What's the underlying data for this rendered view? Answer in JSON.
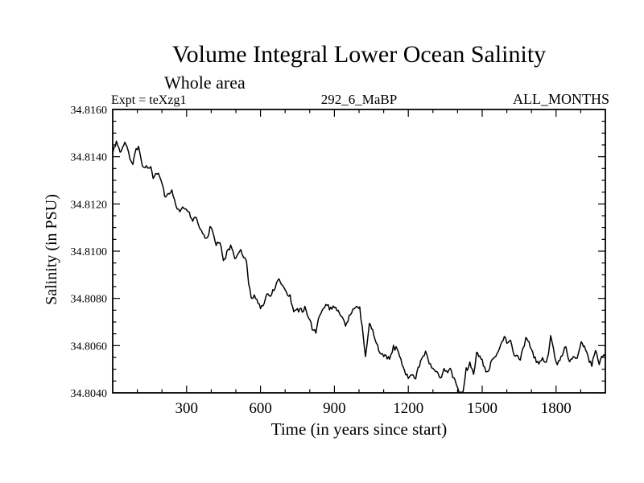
{
  "header": {
    "title": "Volume Integral Lower Ocean Salinity",
    "subtitle": "Whole area",
    "expt_label": "Expt = teXzg1",
    "run_label": "292_6_MaBP",
    "months_label": "ALL_MONTHS"
  },
  "chart_data": {
    "type": "line",
    "title": "Volume Integral Lower Ocean Salinity",
    "subtitle": "Whole area",
    "annotations": [
      "Expt = teXzg1",
      "292_6_MaBP",
      "ALL_MONTHS"
    ],
    "xlabel": "Time (in years since start)",
    "ylabel": "Salinity (in PSU)",
    "xlim": [
      0,
      2000
    ],
    "ylim": [
      34.804,
      34.816
    ],
    "grid": false,
    "legend": "none",
    "line_color": "#000000",
    "background_color": "#ffffff",
    "xticks_major": [
      300,
      600,
      900,
      1200,
      1500,
      1800
    ],
    "xtick_labels": [
      "300",
      "600",
      "900",
      "1200",
      "1500",
      "1800"
    ],
    "xtick_minor_interval": 100,
    "ytick_labels": [
      "34.8040",
      "34.8060",
      "34.8080",
      "34.8100",
      "34.8120",
      "34.8140",
      "34.8160"
    ],
    "yticks_major": [
      34.804,
      34.806,
      34.808,
      34.81,
      34.812,
      34.814,
      34.816
    ],
    "ytick_minor_interval": 0.0005,
    "noise_amplitude_medium": 0.00028,
    "noise_amplitude_fine": 0.0001,
    "series": [
      {
        "name": "lower ocean salinity",
        "x": [
          0,
          15,
          30,
          45,
          58,
          70,
          82,
          95,
          110,
          126,
          142,
          155,
          164,
          175,
          191,
          202,
          215,
          225,
          235,
          251,
          262,
          273,
          284,
          297,
          311,
          325,
          340,
          352,
          365,
          380,
          395,
          404,
          415,
          430,
          445,
          458,
          470,
          483,
          495,
          508,
          520,
          532,
          543,
          552,
          562,
          575,
          590,
          605,
          620,
          640,
          660,
          680,
          695,
          710,
          725,
          740,
          755,
          770,
          785,
          800,
          815,
          825,
          840,
          860,
          880,
          900,
          915,
          930,
          945,
          960,
          975,
          990,
          1003,
          1013,
          1026,
          1042,
          1060,
          1080,
          1100,
          1124,
          1140,
          1160,
          1180,
          1205,
          1230,
          1255,
          1270,
          1290,
          1310,
          1330,
          1350,
          1370,
          1385,
          1400,
          1412,
          1422,
          1435,
          1450,
          1465,
          1477,
          1495,
          1515,
          1530,
          1550,
          1570,
          1590,
          1605,
          1620,
          1640,
          1655,
          1665,
          1677,
          1690,
          1710,
          1730,
          1745,
          1760,
          1778,
          1795,
          1805,
          1820,
          1835,
          1850,
          1865,
          1880,
          1902,
          1915,
          1930,
          1945,
          1960,
          1975,
          1990,
          2000
        ],
        "y": [
          34.8142,
          34.8144,
          34.8141,
          34.8144,
          34.8146,
          34.8141,
          34.8138,
          34.8142,
          34.814,
          34.8135,
          34.8132,
          34.8134,
          34.8129,
          34.8132,
          34.813,
          34.8127,
          34.8125,
          34.8127,
          34.8125,
          34.8122,
          34.8118,
          34.8117,
          34.8121,
          34.8119,
          34.8115,
          34.8111,
          34.8114,
          34.8112,
          34.8109,
          34.8106,
          34.811,
          34.8107,
          34.8105,
          34.8102,
          34.8099,
          34.8096,
          34.8098,
          34.8101,
          34.8099,
          34.8097,
          34.8099,
          34.8096,
          34.8094,
          34.8084,
          34.8078,
          34.8081,
          34.8077,
          34.8079,
          34.8082,
          34.808,
          34.8084,
          34.8087,
          34.8088,
          34.8083,
          34.8078,
          34.8075,
          34.8074,
          34.8073,
          34.8074,
          34.8072,
          34.8068,
          34.8066,
          34.8072,
          34.8076,
          34.8077,
          34.8079,
          34.8074,
          34.807,
          34.8069,
          34.8073,
          34.8076,
          34.8074,
          34.8076,
          34.807,
          34.8058,
          34.8068,
          34.8064,
          34.806,
          34.8057,
          34.8052,
          34.8058,
          34.8056,
          34.8051,
          34.8047,
          34.8046,
          34.8053,
          34.8058,
          34.8054,
          34.8052,
          34.8047,
          34.805,
          34.8053,
          34.8048,
          34.8044,
          34.804,
          34.8041,
          34.8047,
          34.8052,
          34.805,
          34.8058,
          34.8053,
          34.8049,
          34.8052,
          34.8056,
          34.806,
          34.8064,
          34.8062,
          34.8059,
          34.8054,
          34.8052,
          34.8058,
          34.8066,
          34.8061,
          34.8054,
          34.8051,
          34.8054,
          34.8052,
          34.8061,
          34.8056,
          34.8053,
          34.8057,
          34.8059,
          34.8056,
          34.8054,
          34.8056,
          34.8063,
          34.8059,
          34.8056,
          34.8053,
          34.8055,
          34.8053,
          34.8056,
          34.8055
        ]
      }
    ]
  }
}
